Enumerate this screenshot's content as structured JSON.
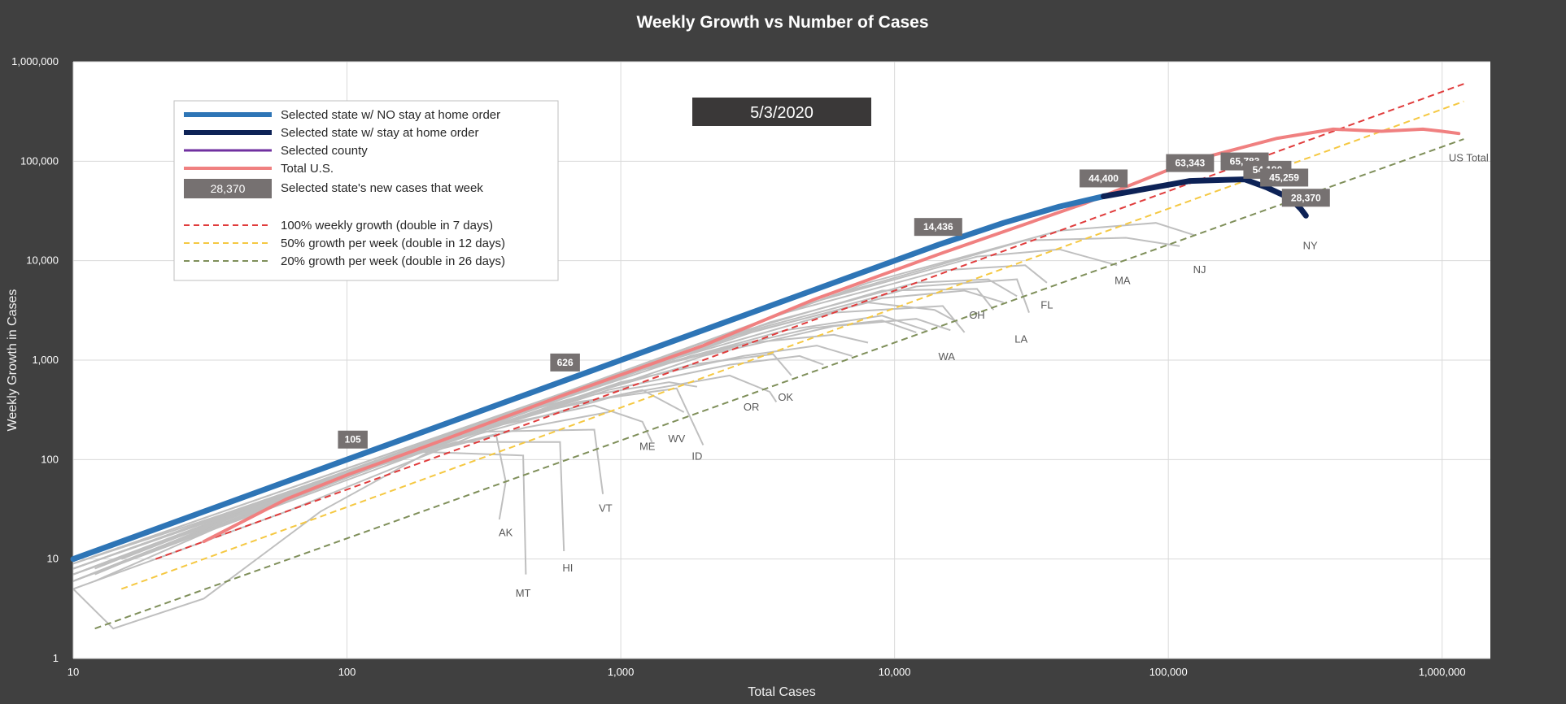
{
  "colors": {
    "background": "#404040",
    "plot_background": "#ffffff",
    "no_order": "#2e75b6",
    "stay_home": "#0d2256",
    "county": "#7030a0",
    "us_total": "#f08080",
    "badge": "#767171",
    "date_box": "#3a3838",
    "grid": "#d9d9d9",
    "gray_states": "#bfbfbf",
    "ref_100": "#e03c3c",
    "ref_50": "#f5c842",
    "ref_20": "#7f8f5a"
  },
  "chart_data": {
    "type": "line",
    "title": "Weekly Growth vs Number of Cases",
    "xlabel": "Total Cases",
    "ylabel": "Weekly Growth in Cases",
    "xscale": "log",
    "yscale": "log",
    "xlim": [
      10,
      1500000
    ],
    "ylim": [
      1,
      1000000
    ],
    "grid": true,
    "x_ticks": [
      10,
      100,
      1000,
      10000,
      100000,
      1000000
    ],
    "x_tick_labels": [
      "10",
      "100",
      "1,000",
      "10,000",
      "100,000",
      "1,000,000"
    ],
    "y_ticks": [
      1,
      10,
      100,
      1000,
      10000,
      100000,
      1000000
    ],
    "y_tick_labels": [
      "1",
      "10",
      "100",
      "1,000",
      "10,000",
      "100,000",
      "1,000,000"
    ],
    "date": "5/3/2020",
    "legend": {
      "placement": "top-left",
      "items": [
        {
          "label": "Selected state w/ NO stay at home order",
          "style": "no_order"
        },
        {
          "label": "Selected state w/ stay at home order",
          "style": "stay_home"
        },
        {
          "label": "Selected county",
          "style": "county"
        },
        {
          "label": "Total U.S.",
          "style": "us_total"
        },
        {
          "label": "Selected state's new cases that week",
          "style": "badge",
          "badge_text": "28,370"
        },
        {
          "label": "100% weekly growth (double in 7 days)",
          "style": "ref_100"
        },
        {
          "label": "50% growth per week (double in 12 days)",
          "style": "ref_50"
        },
        {
          "label": "20% growth per week (double in 26 days)",
          "style": "ref_20"
        }
      ]
    },
    "series": [
      {
        "name": "NY",
        "color_key": "no_order",
        "x": [
          10,
          105,
          626,
          2000,
          5000,
          14436,
          25000,
          40000,
          58000
        ],
        "y": [
          10,
          105,
          626,
          2000,
          5000,
          14436,
          24000,
          35000,
          44400
        ]
      },
      {
        "name": "NY",
        "color_key": "stay_home",
        "x": [
          58000,
          90000,
          120000,
          160000,
          190000,
          230000,
          265000,
          290000,
          305000,
          318000
        ],
        "y": [
          44400,
          55000,
          63343,
          65000,
          65783,
          54190,
          45259,
          38000,
          33000,
          28370
        ]
      },
      {
        "name": "US Total",
        "color_key": "us_total",
        "x": [
          30,
          60,
          100,
          200,
          626,
          2000,
          5000,
          15000,
          50000,
          120000,
          250000,
          400000,
          600000,
          850000,
          1000000,
          1150000
        ],
        "y": [
          15,
          40,
          70,
          140,
          450,
          1400,
          4000,
          12000,
          38000,
          100000,
          170000,
          210000,
          200000,
          210000,
          200000,
          190000
        ]
      }
    ],
    "reference_lines": [
      {
        "name": "100% weekly growth (double in 7 days)",
        "color_key": "ref_100",
        "x": [
          20,
          1200000
        ],
        "y": [
          10,
          600000
        ]
      },
      {
        "name": "50% growth per week (double in 12 days)",
        "color_key": "ref_50",
        "x": [
          15,
          1200000
        ],
        "y": [
          5,
          400000
        ]
      },
      {
        "name": "20% growth per week (double in 26 days)",
        "color_key": "ref_20",
        "x": [
          12,
          1200000
        ],
        "y": [
          2,
          167000
        ]
      }
    ],
    "data_labels": [
      {
        "text": "105",
        "x": 105,
        "y": 105
      },
      {
        "text": "626",
        "x": 626,
        "y": 626
      },
      {
        "text": "14,436",
        "x": 14436,
        "y": 14436
      },
      {
        "text": "44,400",
        "x": 58000,
        "y": 44400
      },
      {
        "text": "63,343",
        "x": 120000,
        "y": 63343
      },
      {
        "text": "65,783",
        "x": 190000,
        "y": 65783
      },
      {
        "text": "54,190",
        "x": 230000,
        "y": 54190
      },
      {
        "text": "45,259",
        "x": 265000,
        "y": 45259
      },
      {
        "text": "28,370",
        "x": 318000,
        "y": 28370
      }
    ],
    "state_labels": [
      {
        "text": "NY",
        "x": 330000,
        "y": 13000
      },
      {
        "text": "US Total",
        "x": 1250000,
        "y": 100000
      },
      {
        "text": "NJ",
        "x": 130000,
        "y": 7500
      },
      {
        "text": "MA",
        "x": 68000,
        "y": 5800
      },
      {
        "text": "FL",
        "x": 36000,
        "y": 3300
      },
      {
        "text": "OH",
        "x": 20000,
        "y": 2600
      },
      {
        "text": "LA",
        "x": 29000,
        "y": 1500
      },
      {
        "text": "WA",
        "x": 15500,
        "y": 1000
      },
      {
        "text": "OK",
        "x": 4000,
        "y": 390
      },
      {
        "text": "OR",
        "x": 3000,
        "y": 310
      },
      {
        "text": "WV",
        "x": 1600,
        "y": 150
      },
      {
        "text": "ME",
        "x": 1250,
        "y": 125
      },
      {
        "text": "ID",
        "x": 1900,
        "y": 100
      },
      {
        "text": "VT",
        "x": 880,
        "y": 30
      },
      {
        "text": "AK",
        "x": 380,
        "y": 17
      },
      {
        "text": "HI",
        "x": 640,
        "y": 7.5
      },
      {
        "text": "MT",
        "x": 440,
        "y": 4.2
      }
    ]
  }
}
